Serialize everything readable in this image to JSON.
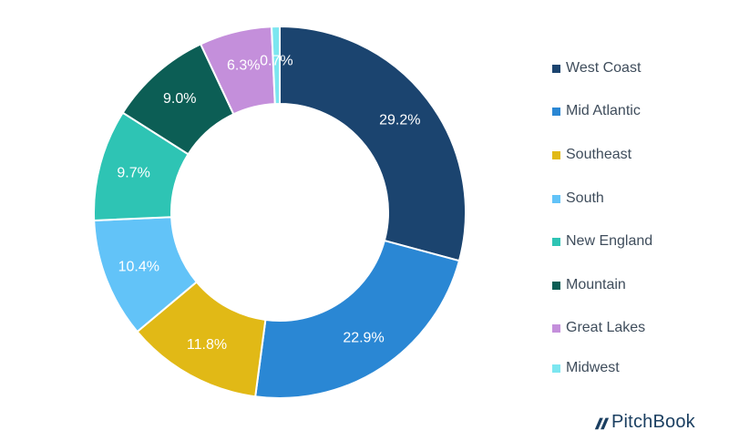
{
  "chart_data": {
    "type": "pie",
    "categories": [
      "West Coast",
      "Mid Atlantic",
      "Southeast",
      "South",
      "New England",
      "Mountain",
      "Great Lakes",
      "Midwest"
    ],
    "values": [
      29.2,
      22.9,
      11.8,
      10.4,
      9.7,
      9.0,
      6.3,
      0.7
    ],
    "data_labels": [
      "29.2%",
      "22.9%",
      "11.8%",
      "10.4%",
      "9.7%",
      "9.0%",
      "6.3%",
      "0.7%"
    ],
    "colors": [
      "#1b446f",
      "#2a87d4",
      "#e1b916",
      "#62c3f8",
      "#2ec4b4",
      "#0c5e55",
      "#c48fdb",
      "#7ce6f0"
    ],
    "label_colors": [
      "#ffffff",
      "#ffffff",
      "#ffffff",
      "#ffffff",
      "#ffffff",
      "#ffffff",
      "#ffffff",
      "#ffffff"
    ],
    "donut": true,
    "legend_position": "right"
  },
  "brand": {
    "logo_text": "PitchBook",
    "logo_color": "#1b3f61"
  }
}
